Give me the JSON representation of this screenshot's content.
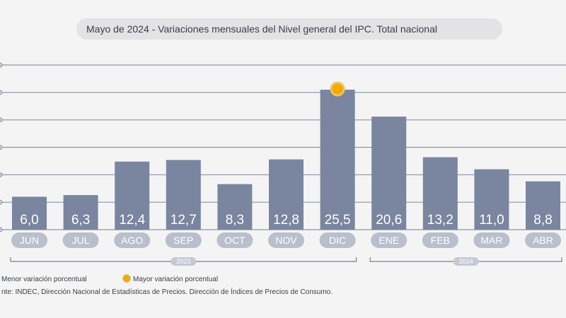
{
  "chart_data": {
    "type": "bar",
    "title": "Mayo de 2024 - Variaciones mensuales del Nivel general del IPC. Total nacional",
    "categories": [
      "JUN",
      "JUL",
      "AGO",
      "SEP",
      "OCT",
      "NOV",
      "DIC",
      "ENE",
      "FEB",
      "MAR",
      "ABR"
    ],
    "values": [
      6.0,
      6.3,
      12.4,
      12.7,
      8.3,
      12.8,
      25.5,
      20.6,
      13.2,
      11.0,
      8.8
    ],
    "value_labels": [
      "6,0",
      "6,3",
      "12,4",
      "12,7",
      "8,3",
      "12,8",
      "25,5",
      "20,6",
      "13,2",
      "11,0",
      "8,8"
    ],
    "ylim": [
      0,
      30
    ],
    "grid": true,
    "bar_color": "#7a859f",
    "highlight_color": "#f5a800",
    "highlight_index": 6,
    "year_groups": [
      {
        "label": "2023",
        "from": 0,
        "to": 6
      },
      {
        "label": "2024",
        "from": 7,
        "to": 10
      }
    ],
    "legend": {
      "min_label": "Menor variación porcentual",
      "max_label": "Mayor variación porcentual"
    },
    "source": "nte: INDEC, Dirección Nacional de Estadísticas de Precios. Dirección de Índices de Precios de Consumo."
  }
}
